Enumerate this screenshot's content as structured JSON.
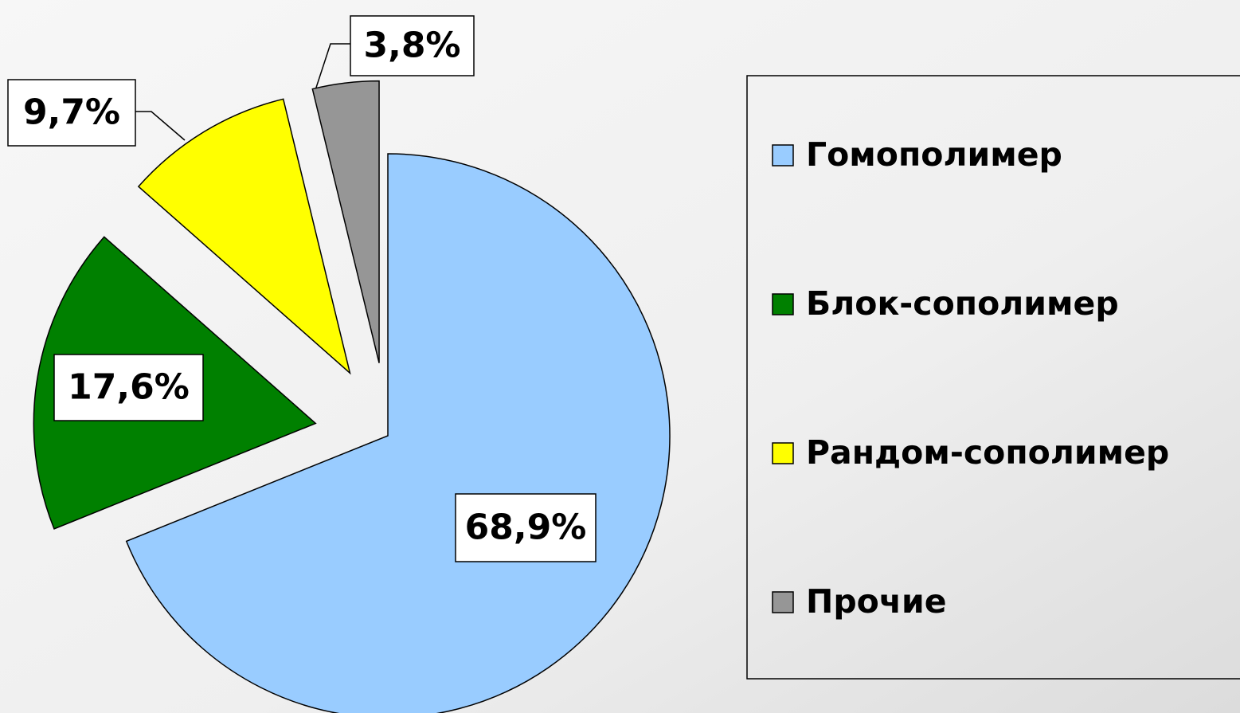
{
  "chart_data": {
    "type": "pie",
    "categories": [
      "Гомополимер",
      "Блок-сополимер",
      "Рандом-сополимер",
      "Прочие"
    ],
    "values": [
      68.9,
      17.6,
      9.7,
      3.8
    ],
    "value_labels": [
      "68,9%",
      "17,6%",
      "9,7%",
      "3,8%"
    ],
    "colors": [
      "#99ccff",
      "#008000",
      "#ffff00",
      "#969696"
    ],
    "legend": "right"
  }
}
